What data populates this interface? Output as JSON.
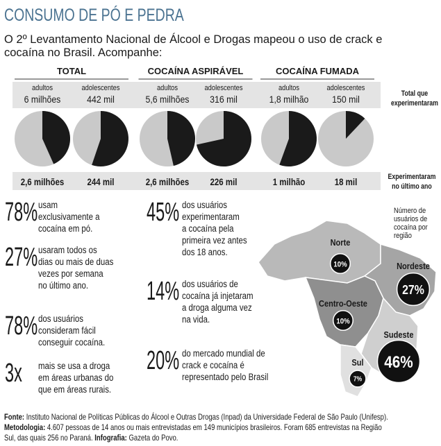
{
  "header": {
    "title": "CONSUMO DE PÓ E PEDRA",
    "subtitle": [
      "O 2º Levantamento Nacional de Álcool e Drogas mapeou o uso de crack e",
      "cocaína no Brasil. Acompanhe:"
    ]
  },
  "groups": [
    {
      "title": "TOTAL",
      "cells": [
        {
          "group": "adultos",
          "total": 6000000,
          "total_label": "6 milhões",
          "recent": 2600000,
          "recent_label": "2,6 milhões"
        },
        {
          "group": "adolescentes",
          "total": 442000,
          "total_label": "442 mil",
          "recent": 244000,
          "recent_label": "244 mil"
        }
      ]
    },
    {
      "title": "COCAÍNA ASPIRÁVEL",
      "cells": [
        {
          "group": "adultos",
          "total": 5600000,
          "total_label": "5,6 milhões",
          "recent": 2600000,
          "recent_label": "2,6 milhões"
        },
        {
          "group": "adolescentes",
          "total": 316000,
          "total_label": "316 mil",
          "recent": 226000,
          "recent_label": "226 mil"
        }
      ]
    },
    {
      "title": "COCAÍNA FUMADA",
      "cells": [
        {
          "group": "adultos",
          "total": 1800000,
          "total_label": "1,8 milhão",
          "recent": 1000000,
          "recent_label": "1 milhão"
        },
        {
          "group": "adolescentes",
          "total": 150000,
          "total_label": "150 mil",
          "recent": 18000,
          "recent_label": "18 mil"
        }
      ]
    }
  ],
  "row_labels": {
    "total": [
      "Total que",
      "experimentaram"
    ],
    "recent": [
      "Experimentaram",
      "no último ano"
    ]
  },
  "stats_left": [
    {
      "value": "78%",
      "lines": [
        "usam",
        "exclusivamente a",
        "cocaína em pó."
      ]
    },
    {
      "value": "27%",
      "lines": [
        "usaram todos os",
        "dias ou mais de duas",
        "vezes por semana",
        "no último ano."
      ]
    },
    {
      "value": "78%",
      "lines": [
        "dos usuários",
        "consideram fácil",
        "conseguir cocaína."
      ]
    },
    {
      "value": "3x",
      "lines": [
        "mais se usa a droga",
        "em áreas urbanas do",
        "que em áreas rurais."
      ]
    }
  ],
  "stats_right": [
    {
      "value": "45%",
      "lines": [
        "dos usuários",
        "experimentaram",
        "a cocaína pela",
        "primeira vez antes",
        "dos 18 anos."
      ]
    },
    {
      "value": "14%",
      "lines": [
        "dos usuários de",
        "cocaína já injetaram",
        "a droga alguma vez",
        "na vida."
      ]
    },
    {
      "value": "20%",
      "lines": [
        "do mercado mundial de",
        "crack e cocaína é",
        "representado pelo Brasil"
      ]
    }
  ],
  "map": {
    "caption": [
      "Número de",
      "usuários de",
      "cocaína por",
      "região"
    ],
    "regions": [
      {
        "name": "Norte",
        "value": 10,
        "label": "10%"
      },
      {
        "name": "Nordeste",
        "value": 27,
        "label": "27%"
      },
      {
        "name": "Centro-Oeste",
        "value": 10,
        "label": "10%"
      },
      {
        "name": "Sudeste",
        "value": 46,
        "label": "46%"
      },
      {
        "name": "Sul",
        "value": 7,
        "label": "7%"
      }
    ]
  },
  "footer": [
    [
      {
        "text": "Fonte:",
        "bold": true
      },
      {
        "text": " Instituto Nacional de Políticas Públicas do Álcool e Outras Drogas (Inpad) da Universidade Federal de São Paulo (Unifesp).",
        "bold": false
      }
    ],
    [
      {
        "text": "Metodologia:",
        "bold": true
      },
      {
        "text": " 4.607 pessoas de 14 anos ou mais entrevistadas em 149 municípios brasileiros. Foram 685 entrevistas na Região",
        "bold": false
      }
    ],
    [
      {
        "text": "Sul, das quais 256 no Paraná. ",
        "bold": false
      },
      {
        "text": "Infografia:",
        "bold": true
      },
      {
        "text": " Gazeta do Povo.",
        "bold": false
      }
    ]
  ]
}
